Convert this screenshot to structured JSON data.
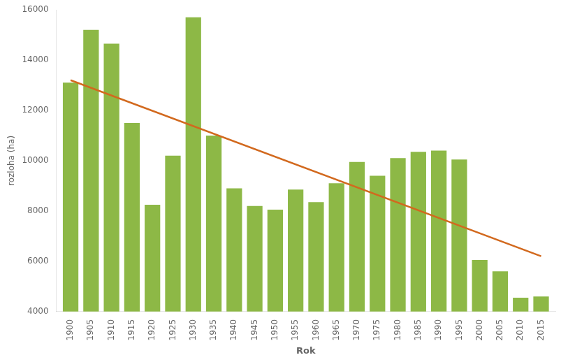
{
  "chart_data": {
    "type": "bar",
    "xlabel": "Rok",
    "ylabel": "rozloha (ha)",
    "series": [
      {
        "type": "bar",
        "color": "#8db846",
        "x": [
          1900,
          1905,
          1910,
          1915,
          1920,
          1925,
          1930,
          1935,
          1940,
          1945,
          1950,
          1955,
          1960,
          1965,
          1970,
          1975,
          1980,
          1985,
          1990,
          1995,
          2000,
          2005,
          2010,
          2015
        ],
        "values": [
          13100,
          15200,
          14650,
          11500,
          8250,
          10200,
          15700,
          11000,
          8900,
          8200,
          8050,
          8850,
          8350,
          9100,
          9950,
          9400,
          10100,
          10350,
          10400,
          10050,
          6050,
          5600,
          4550,
          4600
        ]
      },
      {
        "type": "line",
        "color": "#d2691e",
        "x": [
          1900,
          2015
        ],
        "values": [
          13200,
          6200
        ]
      }
    ],
    "xlim": [
      1896.5,
      2018.5
    ],
    "xticks": [
      1900,
      1905,
      1910,
      1915,
      1920,
      1925,
      1930,
      1935,
      1940,
      1945,
      1950,
      1955,
      1960,
      1965,
      1970,
      1975,
      1980,
      1985,
      1990,
      1995,
      2000,
      2005,
      2010,
      2015
    ],
    "ylim": [
      4000,
      16000
    ],
    "yticks": [
      4000,
      6000,
      8000,
      10000,
      12000,
      14000,
      16000
    ],
    "grid": false
  }
}
